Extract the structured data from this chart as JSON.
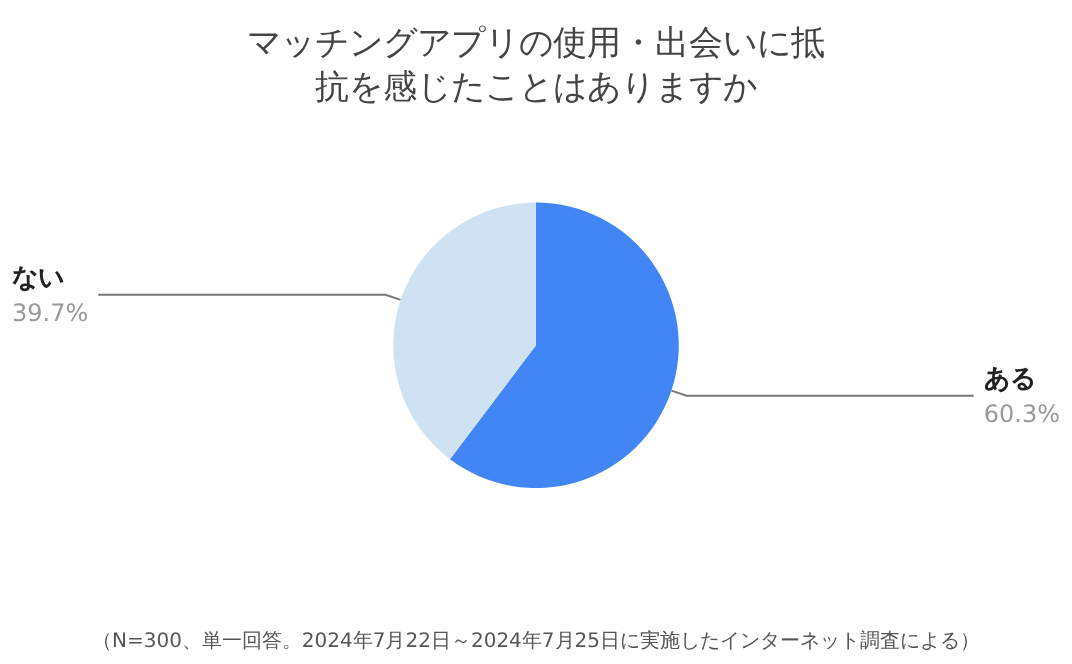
{
  "chart_data": {
    "type": "pie",
    "title": "マッチングアプリの使用・出会いに抵抗を感じたことはありますか",
    "categories": [
      "ある",
      "ない"
    ],
    "values": [
      60.3,
      39.7
    ],
    "colors": [
      "#4285f4",
      "#cfe2f3"
    ],
    "value_labels": [
      "60.3%",
      "39.7%"
    ],
    "legend": false,
    "annotations": [
      "（N=300、単一回答。2024年7月22日～2024年7月25日に実施したインターネット調査による）"
    ]
  }
}
